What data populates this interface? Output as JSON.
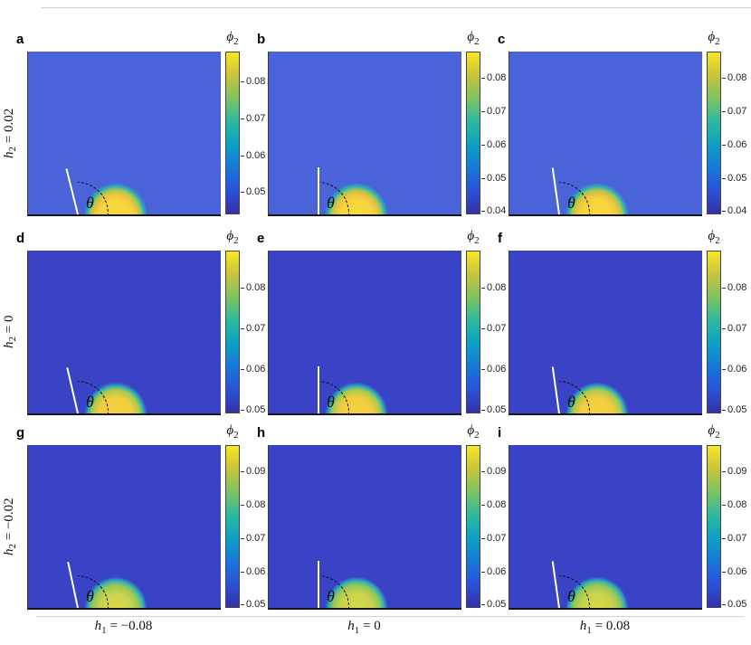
{
  "chart_data": {
    "type": "heatmap",
    "grid": "3x3",
    "description": "Phase-field droplet on a substrate; field ϕ2 shown with parula-like colormap; white tangent line and dashed arc mark contact angle θ",
    "colorbar_label": {
      "var": "ϕ",
      "sub": "2"
    },
    "theta_label": "θ",
    "colormap": [
      "#3431a6",
      "#2a52d8",
      "#1878d8",
      "#0da0c4",
      "#2db99f",
      "#7cc361",
      "#c8c43d",
      "#f8e625"
    ],
    "row_labels": [
      {
        "var": "h",
        "sub": "2",
        "eq": " = 0.02"
      },
      {
        "var": "h",
        "sub": "2",
        "eq": " = 0"
      },
      {
        "var": "h",
        "sub": "2",
        "eq": " = −0.02"
      }
    ],
    "col_labels": [
      {
        "var": "h",
        "sub": "1",
        "eq": " = −0.08"
      },
      {
        "var": "h",
        "sub": "1",
        "eq": " = 0"
      },
      {
        "var": "h",
        "sub": "1",
        "eq": " = 0.08"
      }
    ],
    "panels": [
      {
        "letter": "a",
        "h1": "−0.08",
        "h2": "0.02",
        "vmin": 0.044,
        "vmax": 0.088,
        "ticks": [
          "0.05",
          "0.06",
          "0.07",
          "0.08"
        ],
        "bg": "#4a63d9",
        "line_angle": -14,
        "drop_stops": [
          "#f7dc3b 0%",
          "#f5d43c 42%",
          "#eec243 55%",
          "#a4c94e 66%",
          "#2fb3b2 74%",
          "#4a63d9 84%"
        ]
      },
      {
        "letter": "b",
        "h1": "0",
        "h2": "0.02",
        "vmin": 0.039,
        "vmax": 0.088,
        "ticks": [
          "0.04",
          "0.05",
          "0.06",
          "0.07",
          "0.08"
        ],
        "bg": "#4a63d9",
        "line_angle": 0,
        "drop_stops": [
          "#f7dc3b 0%",
          "#f5d43c 42%",
          "#eec243 55%",
          "#a4c94e 66%",
          "#2fb3b2 74%",
          "#4a63d9 84%"
        ]
      },
      {
        "letter": "c",
        "h1": "0.08",
        "h2": "0.02",
        "vmin": 0.039,
        "vmax": 0.088,
        "ticks": [
          "0.04",
          "0.05",
          "0.06",
          "0.07",
          "0.08"
        ],
        "bg": "#4a63d9",
        "line_angle": -8,
        "drop_stops": [
          "#f7dc3b 0%",
          "#f5d43c 42%",
          "#eec243 55%",
          "#a4c94e 66%",
          "#2fb3b2 74%",
          "#4a63d9 84%"
        ]
      },
      {
        "letter": "d",
        "h1": "−0.08",
        "h2": "0",
        "vmin": 0.049,
        "vmax": 0.089,
        "ticks": [
          "0.05",
          "0.06",
          "0.07",
          "0.08"
        ],
        "bg": "#3a42c6",
        "line_angle": -13,
        "drop_stops": [
          "#f5d53c 0%",
          "#f2cc3e 45%",
          "#a6c94e 64%",
          "#2db0b6 73%",
          "#3a42c6 83%"
        ]
      },
      {
        "letter": "e",
        "h1": "0",
        "h2": "0",
        "vmin": 0.049,
        "vmax": 0.089,
        "ticks": [
          "0.05",
          "0.06",
          "0.07",
          "0.08"
        ],
        "bg": "#3a42c6",
        "line_angle": 0,
        "drop_stops": [
          "#f5d53c 0%",
          "#f2cc3e 45%",
          "#a6c94e 64%",
          "#2db0b6 73%",
          "#3a42c6 83%"
        ]
      },
      {
        "letter": "f",
        "h1": "0.08",
        "h2": "0",
        "vmin": 0.049,
        "vmax": 0.089,
        "ticks": [
          "0.05",
          "0.06",
          "0.07",
          "0.08"
        ],
        "bg": "#3a42c6",
        "line_angle": -8,
        "drop_stops": [
          "#f5d53c 0%",
          "#f2cc3e 45%",
          "#a6c94e 64%",
          "#2db0b6 73%",
          "#3a42c6 83%"
        ]
      },
      {
        "letter": "g",
        "h1": "−0.08",
        "h2": "−0.02",
        "vmin": 0.049,
        "vmax": 0.098,
        "ticks": [
          "0.05",
          "0.06",
          "0.07",
          "0.08",
          "0.09"
        ],
        "bg": "#3a42c6",
        "line_angle": -12,
        "drop_stops": [
          "#d9da4a 0%",
          "#c9d34d 42%",
          "#93c758 62%",
          "#2fb0b8 73%",
          "#3a42c6 83%"
        ]
      },
      {
        "letter": "h",
        "h1": "0",
        "h2": "−0.02",
        "vmin": 0.049,
        "vmax": 0.098,
        "ticks": [
          "0.05",
          "0.06",
          "0.07",
          "0.08",
          "0.09"
        ],
        "bg": "#3a42c6",
        "line_angle": 0,
        "drop_stops": [
          "#d9da4a 0%",
          "#c9d34d 42%",
          "#93c758 62%",
          "#2fb0b8 73%",
          "#3a42c6 83%"
        ]
      },
      {
        "letter": "i",
        "h1": "0.08",
        "h2": "−0.02",
        "vmin": 0.049,
        "vmax": 0.098,
        "ticks": [
          "0.05",
          "0.06",
          "0.07",
          "0.08",
          "0.09"
        ],
        "bg": "#3a42c6",
        "line_angle": -8,
        "drop_stops": [
          "#d9da4a 0%",
          "#c9d34d 42%",
          "#93c758 62%",
          "#2fb0b8 73%",
          "#3a42c6 83%"
        ]
      }
    ]
  }
}
